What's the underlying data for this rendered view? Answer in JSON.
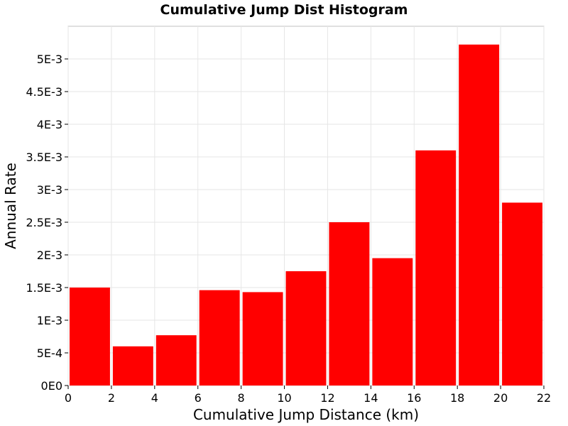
{
  "chart_data": {
    "type": "bar",
    "title": "Cumulative Jump Dist Histogram",
    "xlabel": "Cumulative Jump Distance (km)",
    "ylabel": "Annual Rate",
    "xlim": [
      0,
      22
    ],
    "ylim": [
      0,
      0.0055
    ],
    "grid": true,
    "bar_color": "#ff0000",
    "x_ticks": [
      {
        "value": 0,
        "label": "0"
      },
      {
        "value": 2,
        "label": "2"
      },
      {
        "value": 4,
        "label": "4"
      },
      {
        "value": 6,
        "label": "6"
      },
      {
        "value": 8,
        "label": "8"
      },
      {
        "value": 10,
        "label": "10"
      },
      {
        "value": 12,
        "label": "12"
      },
      {
        "value": 14,
        "label": "14"
      },
      {
        "value": 16,
        "label": "16"
      },
      {
        "value": 18,
        "label": "18"
      },
      {
        "value": 20,
        "label": "20"
      },
      {
        "value": 22,
        "label": "22"
      }
    ],
    "y_ticks": [
      {
        "value": 0,
        "label": "0E0"
      },
      {
        "value": 0.0005,
        "label": "5E-4"
      },
      {
        "value": 0.001,
        "label": "1E-3"
      },
      {
        "value": 0.0015,
        "label": "1.5E-3"
      },
      {
        "value": 0.002,
        "label": "2E-3"
      },
      {
        "value": 0.0025,
        "label": "2.5E-3"
      },
      {
        "value": 0.003,
        "label": "3E-3"
      },
      {
        "value": 0.0035,
        "label": "3.5E-3"
      },
      {
        "value": 0.004,
        "label": "4E-3"
      },
      {
        "value": 0.0045,
        "label": "4.5E-3"
      },
      {
        "value": 0.005,
        "label": "5E-3"
      }
    ],
    "bins": [
      {
        "x0": 0,
        "x1": 2,
        "value": 0.0015
      },
      {
        "x0": 2,
        "x1": 4,
        "value": 0.0006
      },
      {
        "x0": 4,
        "x1": 6,
        "value": 0.00077
      },
      {
        "x0": 6,
        "x1": 8,
        "value": 0.00146
      },
      {
        "x0": 8,
        "x1": 10,
        "value": 0.00143
      },
      {
        "x0": 10,
        "x1": 12,
        "value": 0.00175
      },
      {
        "x0": 12,
        "x1": 14,
        "value": 0.0025
      },
      {
        "x0": 14,
        "x1": 16,
        "value": 0.00195
      },
      {
        "x0": 16,
        "x1": 18,
        "value": 0.0036
      },
      {
        "x0": 18,
        "x1": 20,
        "value": 0.00522
      },
      {
        "x0": 20,
        "x1": 22,
        "value": 0.0028
      }
    ]
  }
}
